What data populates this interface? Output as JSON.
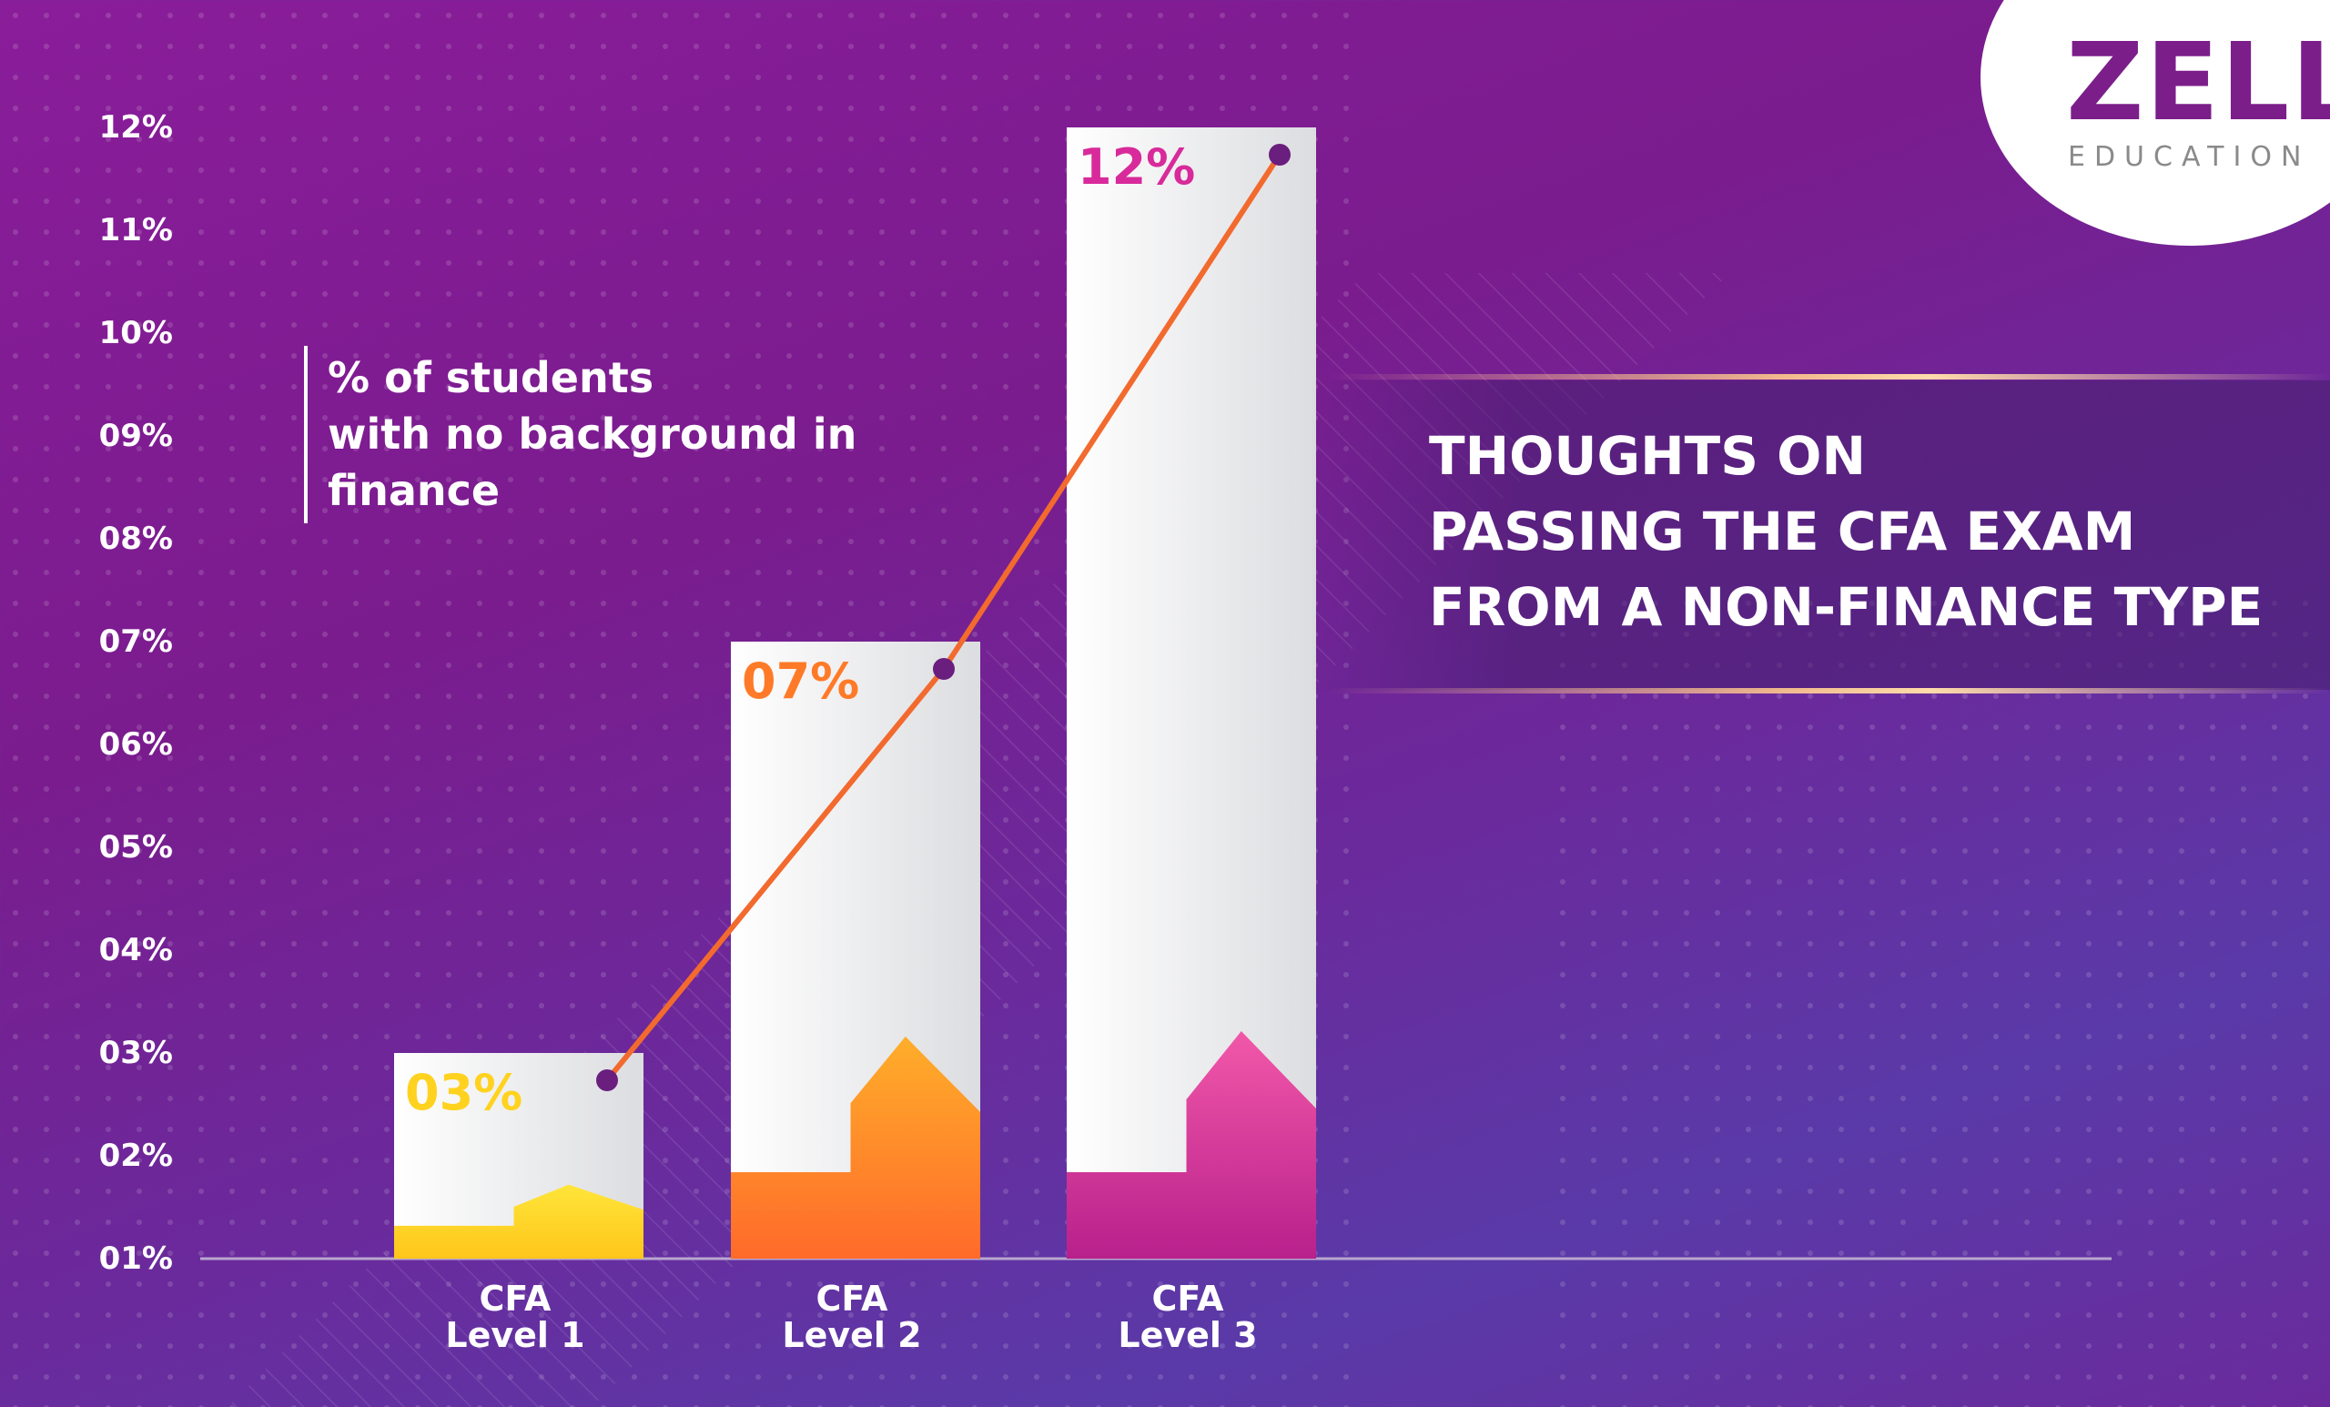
{
  "colors": {
    "accent_line": "#f26a2e",
    "point": "#6a1e7e",
    "bar_body": "#f2f2f2",
    "level1": "#ffd21f",
    "level2": "#ff7a28",
    "level3": "#d82a9a",
    "brand": "#7b1e8a"
  },
  "chart_data": {
    "type": "bar",
    "categories": [
      "CFA\nLevel 1",
      "CFA\nLevel 2",
      "CFA\nLevel 3"
    ],
    "values": [
      3,
      7,
      12
    ],
    "data_labels": [
      "03%",
      "07%",
      "12%"
    ],
    "ytick_labels": [
      "01%",
      "02%",
      "03%",
      "04%",
      "05%",
      "06%",
      "07%",
      "08%",
      "09%",
      "10%",
      "11%",
      "12%"
    ],
    "ytick_values": [
      1,
      2,
      3,
      4,
      5,
      6,
      7,
      8,
      9,
      10,
      11,
      12
    ],
    "legend": "% of students\nwith no background in\nfinance",
    "ylim": [
      1,
      12
    ],
    "overlay": "line connecting bar tops",
    "grid": false
  },
  "headline": "THOUGHTS ON\nPASSING THE CFA EXAM\nFROM A NON-FINANCE TYPE",
  "logo": {
    "name": "ZELL",
    "subtitle": "EDUCATION"
  }
}
